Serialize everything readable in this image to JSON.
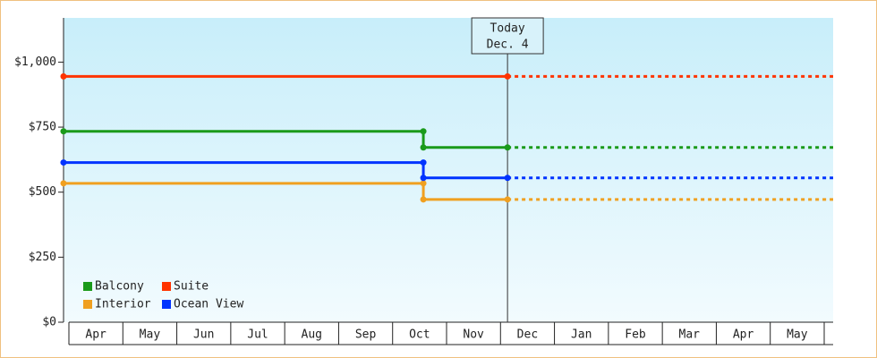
{
  "chart_data": {
    "type": "line",
    "categories": [
      "Apr",
      "May",
      "Jun",
      "Jul",
      "Aug",
      "Sep",
      "Oct",
      "Nov",
      "Dec",
      "Jan",
      "Feb",
      "Mar",
      "Apr",
      "May"
    ],
    "xlim": [
      -0.1,
      14.16
    ],
    "ylim": [
      0,
      1170
    ],
    "yticks": [
      {
        "value": 0,
        "label": "$0"
      },
      {
        "value": 250,
        "label": "$250"
      },
      {
        "value": 500,
        "label": "$500"
      },
      {
        "value": 750,
        "label": "$750"
      },
      {
        "value": 1000,
        "label": "$1,000"
      }
    ],
    "today": {
      "label": [
        "Today",
        "Dec. 4"
      ],
      "x": 8.13
    },
    "series": [
      {
        "name": "Balcony",
        "color": "#1a9a1a",
        "x": [
          -0.1,
          6.57,
          6.57,
          8.13
        ],
        "values": [
          734,
          734,
          672,
          672
        ]
      },
      {
        "name": "Suite",
        "color": "#ff3300",
        "x": [
          -0.1,
          8.13
        ],
        "values": [
          945,
          945
        ]
      },
      {
        "name": "Interior",
        "color": "#f0a020",
        "x": [
          -0.1,
          6.57,
          6.57,
          8.13
        ],
        "values": [
          534,
          534,
          472,
          472
        ]
      },
      {
        "name": "Ocean View",
        "color": "#0033ff",
        "x": [
          -0.1,
          6.57,
          6.57,
          8.13
        ],
        "values": [
          614,
          614,
          555,
          555
        ]
      }
    ]
  }
}
